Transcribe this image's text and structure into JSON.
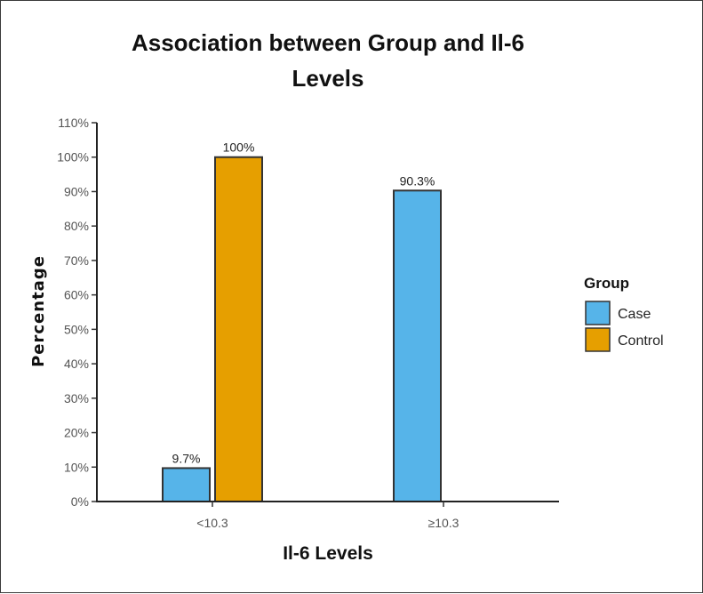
{
  "chart_data": {
    "type": "bar",
    "title_lines": [
      "Association between Group and Il-6",
      "Levels"
    ],
    "xlabel": "Il-6 Levels",
    "ylabel": "Percentage",
    "categories": [
      "<10.3",
      "≥10.3"
    ],
    "ylim": [
      0,
      110
    ],
    "yticks": [
      "0%",
      "10%",
      "20%",
      "30%",
      "40%",
      "50%",
      "60%",
      "70%",
      "80%",
      "90%",
      "100%",
      "110%"
    ],
    "legend": {
      "title": "Group",
      "position": "right"
    },
    "grid": false,
    "series": [
      {
        "name": "Case",
        "color": "#56B4E9",
        "values": [
          9.7,
          90.3
        ],
        "labels": [
          "9.7%",
          "90.3%"
        ]
      },
      {
        "name": "Control",
        "color": "#E69F00",
        "values": [
          100,
          null
        ],
        "labels": [
          "100%",
          null
        ]
      }
    ]
  }
}
